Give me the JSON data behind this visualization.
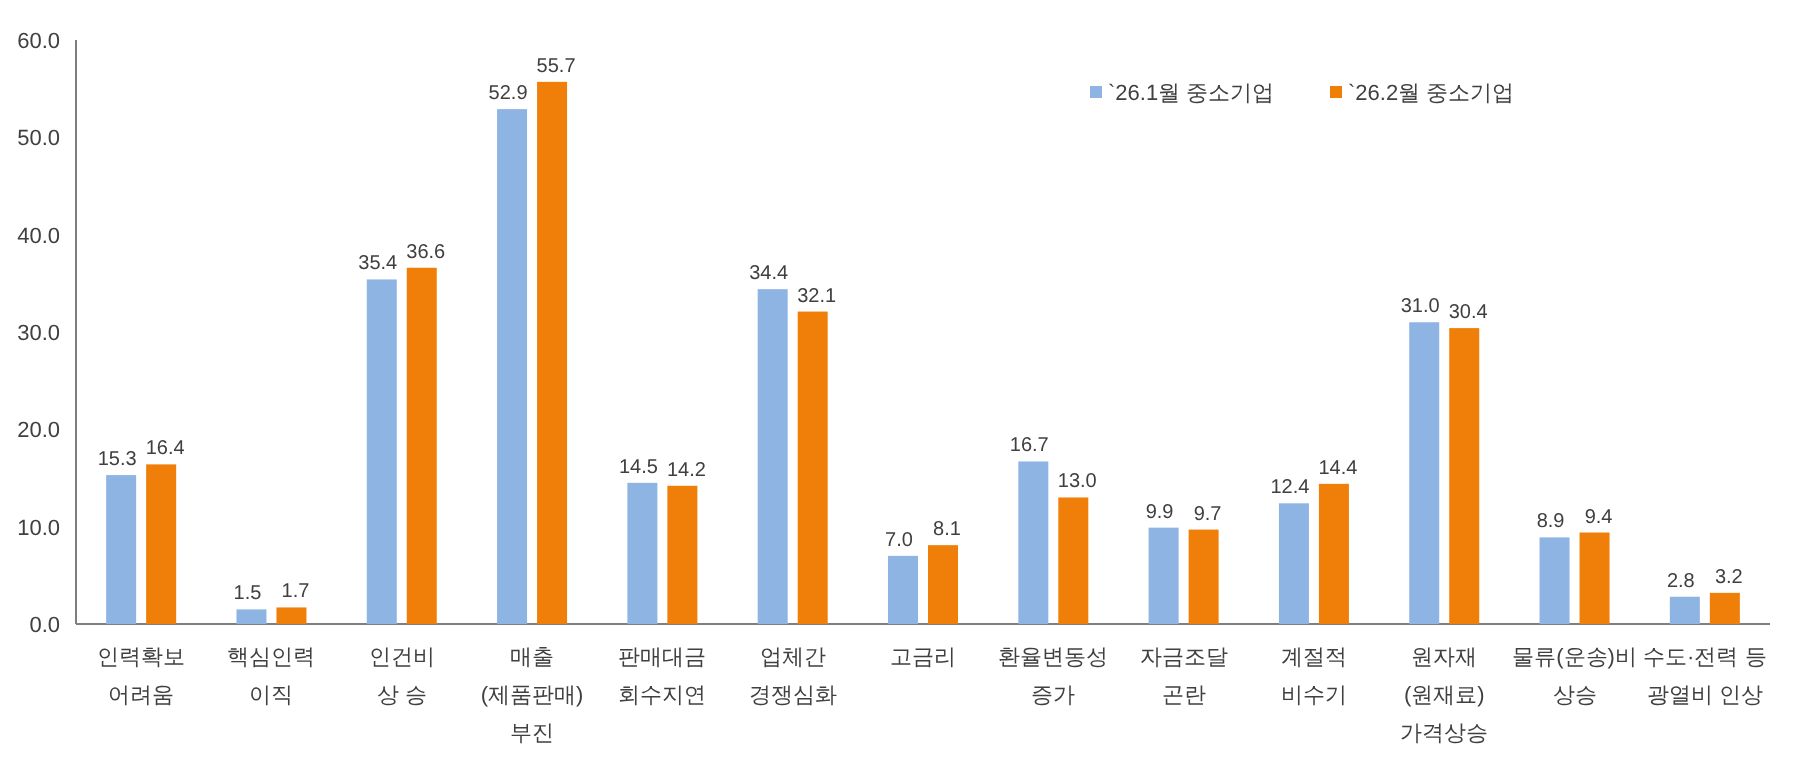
{
  "chart_data": {
    "type": "bar",
    "categories": [
      "인력확보\n어려움",
      "핵심인력\n이직",
      "인건비\n상 승",
      "매출\n(제품판매)\n부진",
      "판매대금\n회수지연",
      "업체간\n경쟁심화",
      "고금리",
      "환율변동성\n증가",
      "자금조달\n곤란",
      "계절적\n비수기",
      "원자재\n(원재료)\n가격상승",
      "물류(운송)비\n상승",
      "수도·전력 등\n광열비 인상"
    ],
    "series": [
      {
        "name": "`26.1월 중소기업",
        "color": "#8eb4e3",
        "values": [
          15.3,
          1.5,
          35.4,
          52.9,
          14.5,
          34.4,
          7.0,
          16.7,
          9.9,
          12.4,
          31.0,
          8.9,
          2.8
        ],
        "value_labels": [
          "15.3",
          "1.5",
          "35.4",
          "52.9",
          "14.5",
          "34.4",
          "7.0",
          "16.7",
          "9.9",
          "12.4",
          "31.0",
          "8.9",
          "2.8"
        ]
      },
      {
        "name": "`26.2월 중소기업",
        "color": "#f07f09",
        "values": [
          16.4,
          1.7,
          36.6,
          55.7,
          14.2,
          32.1,
          8.1,
          13.0,
          9.7,
          14.4,
          30.4,
          9.4,
          3.2
        ],
        "value_labels": [
          "16.4",
          "1.7",
          "36.6",
          "55.7",
          "14.2",
          "32.1",
          "8.1",
          "13.0",
          "9.7",
          "14.4",
          "30.4",
          "9.4",
          "3.2"
        ]
      }
    ],
    "ylim": [
      0,
      60
    ],
    "yticks": [
      {
        "value": 0,
        "label": "0.0"
      },
      {
        "value": 10,
        "label": "10.0"
      },
      {
        "value": 20,
        "label": "20.0"
      },
      {
        "value": 30,
        "label": "30.0"
      },
      {
        "value": 40,
        "label": "40.0"
      },
      {
        "value": 50,
        "label": "50.0"
      },
      {
        "value": 60,
        "label": "60.0"
      }
    ],
    "legend": "top right",
    "grid": false
  }
}
